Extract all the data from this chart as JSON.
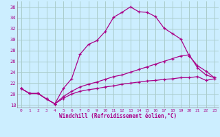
{
  "xlabel": "Windchill (Refroidissement éolien,°C)",
  "background_color": "#cceeff",
  "grid_color": "#aacccc",
  "line_color": "#aa0088",
  "xlim": [
    -0.5,
    23.5
  ],
  "ylim": [
    17.5,
    37.0
  ],
  "xticks": [
    0,
    1,
    2,
    3,
    4,
    5,
    6,
    7,
    8,
    9,
    10,
    11,
    12,
    13,
    14,
    15,
    16,
    17,
    18,
    19,
    20,
    21,
    22,
    23
  ],
  "yticks": [
    18,
    20,
    22,
    24,
    26,
    28,
    30,
    32,
    34,
    36
  ],
  "series1_x": [
    0,
    1,
    2,
    3,
    4,
    5,
    6,
    7,
    8,
    9,
    10,
    11,
    12,
    13,
    14,
    15,
    16,
    17,
    18,
    19,
    20,
    21,
    22,
    23
  ],
  "series1_y": [
    21.0,
    20.1,
    20.1,
    19.1,
    18.2,
    21.0,
    22.8,
    27.3,
    29.1,
    29.8,
    31.5,
    34.1,
    35.0,
    36.0,
    35.1,
    35.0,
    34.2,
    32.1,
    31.1,
    30.1,
    27.0,
    25.2,
    24.2,
    23.0
  ],
  "series2_x": [
    0,
    1,
    2,
    3,
    4,
    5,
    6,
    7,
    8,
    9,
    10,
    11,
    12,
    13,
    14,
    15,
    16,
    17,
    18,
    19,
    20,
    21,
    22,
    23
  ],
  "series2_y": [
    21.0,
    20.1,
    20.1,
    19.1,
    18.2,
    19.5,
    20.5,
    21.3,
    21.8,
    22.2,
    22.7,
    23.2,
    23.5,
    24.0,
    24.5,
    25.0,
    25.5,
    26.0,
    26.5,
    27.0,
    27.2,
    24.8,
    23.5,
    23.0
  ],
  "series3_x": [
    0,
    1,
    2,
    3,
    4,
    5,
    6,
    7,
    8,
    9,
    10,
    11,
    12,
    13,
    14,
    15,
    16,
    17,
    18,
    19,
    20,
    21,
    22,
    23
  ],
  "series3_y": [
    21.0,
    20.1,
    20.1,
    19.1,
    18.2,
    19.2,
    20.0,
    20.5,
    20.8,
    21.0,
    21.3,
    21.5,
    21.8,
    22.0,
    22.2,
    22.4,
    22.5,
    22.7,
    22.8,
    23.0,
    23.0,
    23.2,
    22.5,
    22.8
  ]
}
